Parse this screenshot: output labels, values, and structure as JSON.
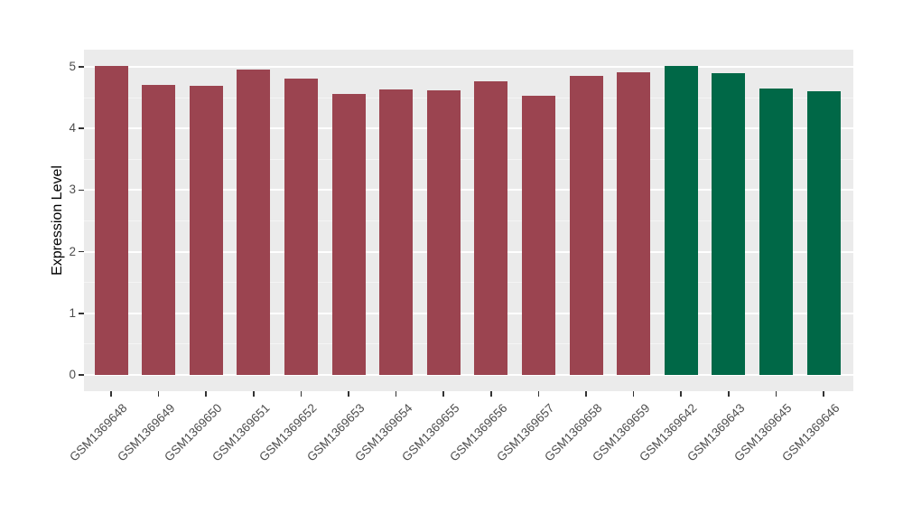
{
  "chart_data": {
    "type": "bar",
    "title": "",
    "xlabel": "",
    "ylabel": "Expression Level",
    "categories": [
      "GSM1369648",
      "GSM1369649",
      "GSM1369650",
      "GSM1369651",
      "GSM1369652",
      "GSM1369653",
      "GSM1369654",
      "GSM1369655",
      "GSM1369656",
      "GSM1369657",
      "GSM1369658",
      "GSM1369659",
      "GSM1369642",
      "GSM1369643",
      "GSM1369645",
      "GSM1369646"
    ],
    "values": [
      5.01,
      4.71,
      4.69,
      4.95,
      4.81,
      4.56,
      4.64,
      4.62,
      4.76,
      4.53,
      4.85,
      4.91,
      5.01,
      4.9,
      4.65,
      4.6
    ],
    "bar_groups": [
      "group1",
      "group1",
      "group1",
      "group1",
      "group1",
      "group1",
      "group1",
      "group1",
      "group1",
      "group1",
      "group1",
      "group1",
      "group2",
      "group2",
      "group2",
      "group2"
    ],
    "palette": {
      "group1": "#9B4450",
      "group2": "#006847"
    },
    "ylim": [
      0,
      5.26
    ],
    "yticks": [
      0,
      1,
      2,
      3,
      4,
      5
    ],
    "minor_yticks": [
      0.5,
      1.5,
      2.5,
      3.5,
      4.5
    ],
    "grid": "on",
    "legend_position": "none",
    "x_tick_rotation_deg": 45,
    "panel_background": "#EBEBEB",
    "bar_width_fraction": 0.7
  }
}
